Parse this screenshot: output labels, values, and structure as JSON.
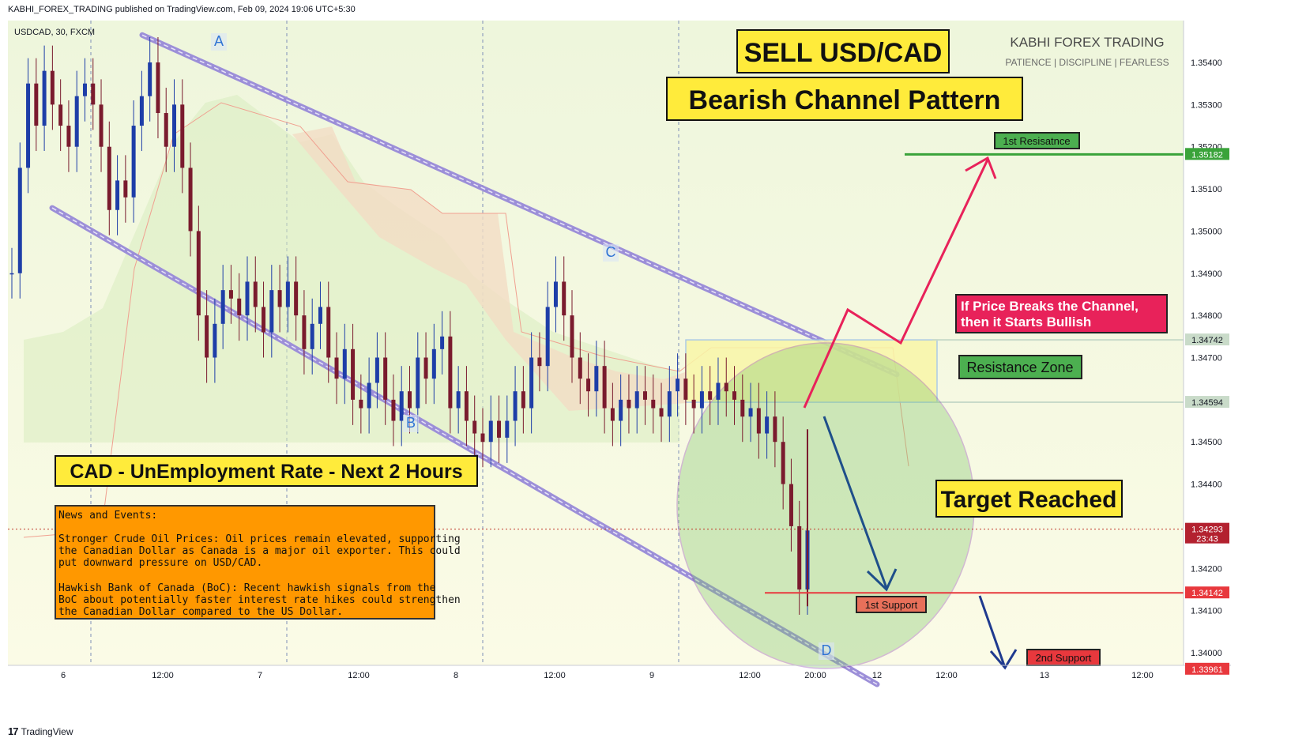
{
  "header": {
    "publish_line": "KABHI_FOREX_TRADING published on TradingView.com, Feb 09, 2024 19:06 UTC+5:30"
  },
  "footer": {
    "logo": "17",
    "brand": "TradingView"
  },
  "colors": {
    "up": "#1e3ea8",
    "down": "#7a1b2e",
    "red": "#e8383d",
    "green": "#3aa33a",
    "pink": "#e8225a",
    "navy": "#1f4f8a",
    "orange": "#ff9800",
    "yellow": "#ffeb3b",
    "purple": "#8a3fb0",
    "channel": "#9c8fd8"
  },
  "chart_data": {
    "type": "line",
    "symbol": "USDCAD, 30, FXCM",
    "x_ticks": [
      "6",
      "12:00",
      "7",
      "12:00",
      "8",
      "12:00",
      "9",
      "12:00",
      "20:00",
      "12",
      "12:00",
      "13",
      "12:00"
    ],
    "y_ticks": [
      "1.35400",
      "1.35300",
      "1.35200",
      "1.35100",
      "1.35000",
      "1.34900",
      "1.34800",
      "1.34700",
      "1.34600",
      "1.34500",
      "1.34400",
      "1.34300",
      "1.34200",
      "1.34100",
      "1.34000"
    ],
    "ylim": [
      1.33925,
      1.3551
    ],
    "price_labels": [
      {
        "value": "1.35182",
        "color": "#3aa33a"
      },
      {
        "value": "1.34742",
        "color": "#c9dbc9"
      },
      {
        "value": "1.34594",
        "color": "#c9dbc9"
      },
      {
        "value": "1.34293",
        "sub": "23:43",
        "color": "#b3212f"
      },
      {
        "value": "1.34142",
        "color": "#e8383d"
      },
      {
        "value": "1.33961",
        "color": "#e8383d"
      }
    ],
    "close_series": [
      1.349,
      1.3515,
      1.3535,
      1.3525,
      1.3538,
      1.353,
      1.3525,
      1.352,
      1.3532,
      1.3535,
      1.353,
      1.352,
      1.3505,
      1.3512,
      1.3508,
      1.3525,
      1.3532,
      1.354,
      1.3528,
      1.352,
      1.353,
      1.3515,
      1.35,
      1.348,
      1.347,
      1.3478,
      1.3486,
      1.3484,
      1.348,
      1.3488,
      1.3482,
      1.3476,
      1.3486,
      1.3482,
      1.3488,
      1.348,
      1.3472,
      1.3478,
      1.3482,
      1.347,
      1.3465,
      1.3472,
      1.346,
      1.3458,
      1.3464,
      1.347,
      1.346,
      1.3455,
      1.3462,
      1.3458,
      1.347,
      1.3465,
      1.3472,
      1.3475,
      1.3458,
      1.3462,
      1.3455,
      1.3452,
      1.345,
      1.3455,
      1.3451,
      1.3455,
      1.3462,
      1.3458,
      1.347,
      1.3468,
      1.3482,
      1.3488,
      1.348,
      1.347,
      1.3465,
      1.3462,
      1.3468,
      1.3458,
      1.3455,
      1.346,
      1.3458,
      1.3462,
      1.346,
      1.3458,
      1.3456,
      1.3462,
      1.3465,
      1.346,
      1.3458,
      1.3462,
      1.346,
      1.3464,
      1.3462,
      1.346,
      1.3456,
      1.3458,
      1.3452,
      1.3456,
      1.345,
      1.344,
      1.343,
      1.3415,
      1.3429
    ],
    "channel": {
      "upper": [
        [
          1.35465,
          "start"
        ],
        [
          1.3466,
          "end"
        ]
      ],
      "lower": [
        [
          1.35055,
          "start"
        ],
        [
          1.33925,
          "end"
        ]
      ]
    },
    "levels": {
      "resistance_1": 1.35182,
      "zone_top": 1.34742,
      "zone_bottom": 1.34594,
      "support_1": 1.34142,
      "support_2": 1.33961
    },
    "points": [
      {
        "label": "A"
      },
      {
        "label": "B"
      },
      {
        "label": "C"
      },
      {
        "label": "D"
      }
    ],
    "annotations": {
      "sell": "SELL USD/CAD",
      "pattern": "Bearish Channel Pattern",
      "brand_title": "KABHI FOREX TRADING",
      "brand_sub": "PATIENCE   |   DISCIPLINE   |   FEARLESS",
      "res1": "1st Resisatnce",
      "breakout_line1": "If Price Breaks the Channel,",
      "breakout_line2": "then it Starts Bullish",
      "zone": "Resistance Zone",
      "target": "Target Reached",
      "cad": "CAD - UnEmployment Rate - Next 2 Hours",
      "sup1": "1st Support",
      "sup2": "2nd Support",
      "news_title": "News and Events:",
      "news_p1": [
        "Stronger Crude Oil Prices: Oil prices remain elevated, supporting",
        "the Canadian Dollar as Canada is a major oil exporter. This could",
        "put downward pressure on USD/CAD."
      ],
      "news_p2": [
        "Hawkish Bank of Canada (BoC): Recent hawkish signals from the",
        "BoC about potentially faster interest rate hikes could strengthen",
        "the Canadian Dollar compared to the US Dollar."
      ]
    }
  }
}
